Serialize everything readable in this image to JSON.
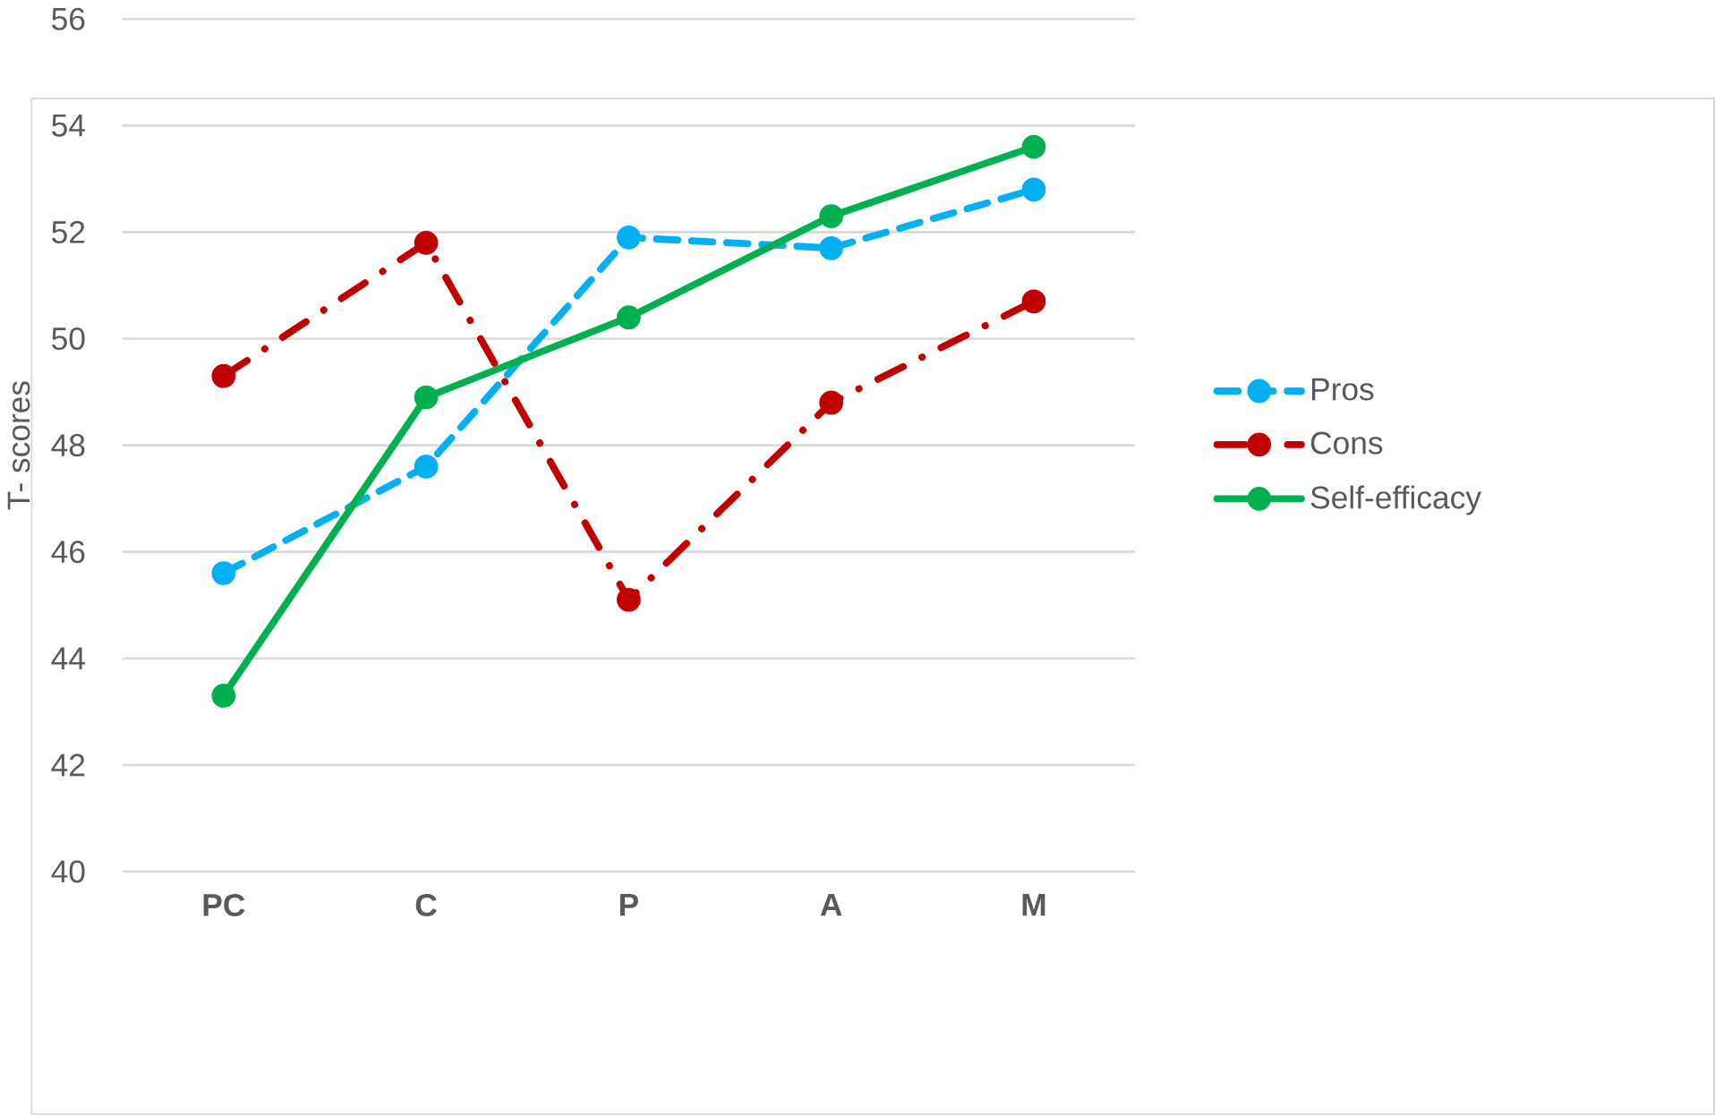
{
  "chart_data": {
    "type": "line",
    "ylabel": "T- scores",
    "categories": [
      "PC",
      "C",
      "P",
      "A",
      "M"
    ],
    "series": [
      {
        "name": "Pros",
        "color": "#00b0f0",
        "line_style": "dashed",
        "values": [
          45.6,
          47.6,
          51.9,
          51.7,
          52.8
        ]
      },
      {
        "name": "Cons",
        "color": "#c00000",
        "line_style": "dashdot",
        "values": [
          49.3,
          51.8,
          45.1,
          48.8,
          50.7
        ]
      },
      {
        "name": "Self-efficacy",
        "color": "#00b050",
        "line_style": "solid",
        "values": [
          43.3,
          48.9,
          50.4,
          52.3,
          53.6
        ]
      }
    ],
    "ylim": [
      40,
      56
    ],
    "yticks": [
      40,
      42,
      44,
      46,
      48,
      50,
      52,
      54,
      56
    ],
    "grid": "y",
    "legend": "right",
    "marker": "circle"
  }
}
